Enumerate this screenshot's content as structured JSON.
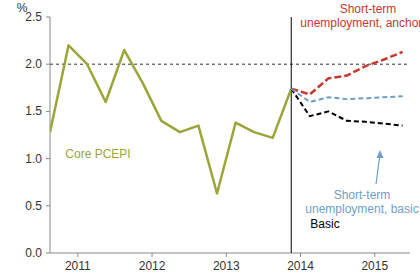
{
  "chart_data": {
    "type": "line",
    "y_label": "%",
    "xlim": [
      2011,
      2015.85
    ],
    "xticks": [
      {
        "value": 2011.375,
        "label": "2011"
      },
      {
        "value": 2012.375,
        "label": "2012"
      },
      {
        "value": 2013.375,
        "label": "2013"
      },
      {
        "value": 2014.375,
        "label": "2014"
      },
      {
        "value": 2015.375,
        "label": "2015"
      }
    ],
    "ylim": [
      0,
      2.5
    ],
    "yticks": [
      {
        "value": 0,
        "label": "0.0"
      },
      0.5,
      {
        "value": 1,
        "label": "1.0"
      },
      1.5,
      {
        "value": 2,
        "label": "2.0"
      },
      2.5
    ],
    "reference_line": 2,
    "forecast_start": 2014.25,
    "series": [
      {
        "name": "Core PCEPI",
        "color": "#9ca538",
        "line_style": "solid",
        "x": [
          2011,
          2011.25,
          2011.5,
          2011.75,
          2012,
          2012.25,
          2012.5,
          2012.75,
          2013,
          2013.25,
          2013.5,
          2013.75,
          2014,
          2014.25
        ],
        "values": [
          1.28,
          2.2,
          2.0,
          1.6,
          2.15,
          1.8,
          1.4,
          1.28,
          1.35,
          0.63,
          1.38,
          1.28,
          1.22,
          1.74
        ]
      },
      {
        "name": "Short-term unemployment, anchored",
        "color": "#c8372d",
        "line_style": "dashed",
        "x": [
          2014.25,
          2014.5,
          2014.75,
          2015,
          2015.25,
          2015.5,
          2015.75
        ],
        "values": [
          1.74,
          1.68,
          1.85,
          1.88,
          1.98,
          2.05,
          2.13
        ]
      },
      {
        "name": "Basic",
        "color": "#000000",
        "line_style": "dashed",
        "x": [
          2014.25,
          2014.5,
          2014.75,
          2015,
          2015.25,
          2015.5,
          2015.75
        ],
        "values": [
          1.74,
          1.45,
          1.5,
          1.4,
          1.39,
          1.37,
          1.35
        ]
      },
      {
        "name": "Short-term unemployment, basic",
        "color": "#6f9fc8",
        "line_style": "dashed",
        "x": [
          2014.25,
          2014.5,
          2014.75,
          2015,
          2015.25,
          2015.5,
          2015.75
        ],
        "values": [
          1.74,
          1.6,
          1.65,
          1.63,
          1.64,
          1.65,
          1.66
        ]
      }
    ]
  }
}
